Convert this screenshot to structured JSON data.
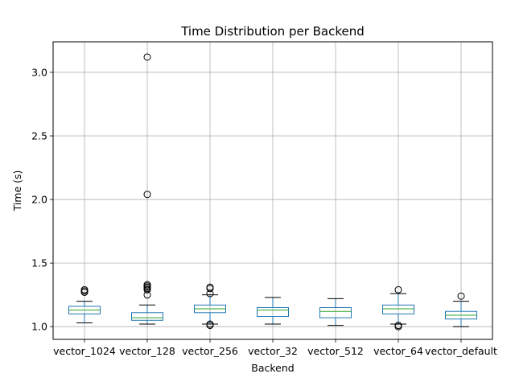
{
  "chart_data": {
    "type": "box",
    "title": "Time Distribution per Backend",
    "xlabel": "Backend",
    "ylabel": "Time (s)",
    "ylim": [
      0.9,
      3.24
    ],
    "yticks": [
      1.0,
      1.5,
      2.0,
      2.5,
      3.0
    ],
    "ytick_labels": [
      "1.0",
      "1.5",
      "2.0",
      "2.5",
      "3.0"
    ],
    "grid": true,
    "categories": [
      "vector_1024",
      "vector_128",
      "vector_256",
      "vector_32",
      "vector_512",
      "vector_64",
      "vector_default"
    ],
    "boxes": [
      {
        "name": "vector_1024",
        "whisker_low": 1.03,
        "q1": 1.1,
        "median": 1.13,
        "q3": 1.16,
        "whisker_high": 1.2,
        "outliers": [
          1.27,
          1.28,
          1.29
        ]
      },
      {
        "name": "vector_128",
        "whisker_low": 1.02,
        "q1": 1.05,
        "median": 1.07,
        "q3": 1.11,
        "whisker_high": 1.17,
        "outliers": [
          1.25,
          1.29,
          1.3,
          1.31,
          1.32,
          1.33,
          2.04,
          3.12
        ]
      },
      {
        "name": "vector_256",
        "whisker_low": 1.02,
        "q1": 1.11,
        "median": 1.14,
        "q3": 1.17,
        "whisker_high": 1.25,
        "outliers": [
          1.01,
          1.02,
          1.26,
          1.3,
          1.31
        ]
      },
      {
        "name": "vector_32",
        "whisker_low": 1.02,
        "q1": 1.08,
        "median": 1.13,
        "q3": 1.15,
        "whisker_high": 1.23,
        "outliers": []
      },
      {
        "name": "vector_512",
        "whisker_low": 1.01,
        "q1": 1.07,
        "median": 1.12,
        "q3": 1.15,
        "whisker_high": 1.22,
        "outliers": []
      },
      {
        "name": "vector_64",
        "whisker_low": 1.02,
        "q1": 1.1,
        "median": 1.14,
        "q3": 1.17,
        "whisker_high": 1.26,
        "outliers": [
          1.0,
          1.01,
          1.29
        ]
      },
      {
        "name": "vector_default",
        "whisker_low": 1.0,
        "q1": 1.06,
        "median": 1.09,
        "q3": 1.12,
        "whisker_high": 1.2,
        "outliers": [
          1.24
        ]
      }
    ],
    "colors": {
      "box": "#1f77b4",
      "median": "#2ca02c",
      "whisker": "#000000",
      "flier": "#000000",
      "grid": "#b0b0b0"
    }
  }
}
